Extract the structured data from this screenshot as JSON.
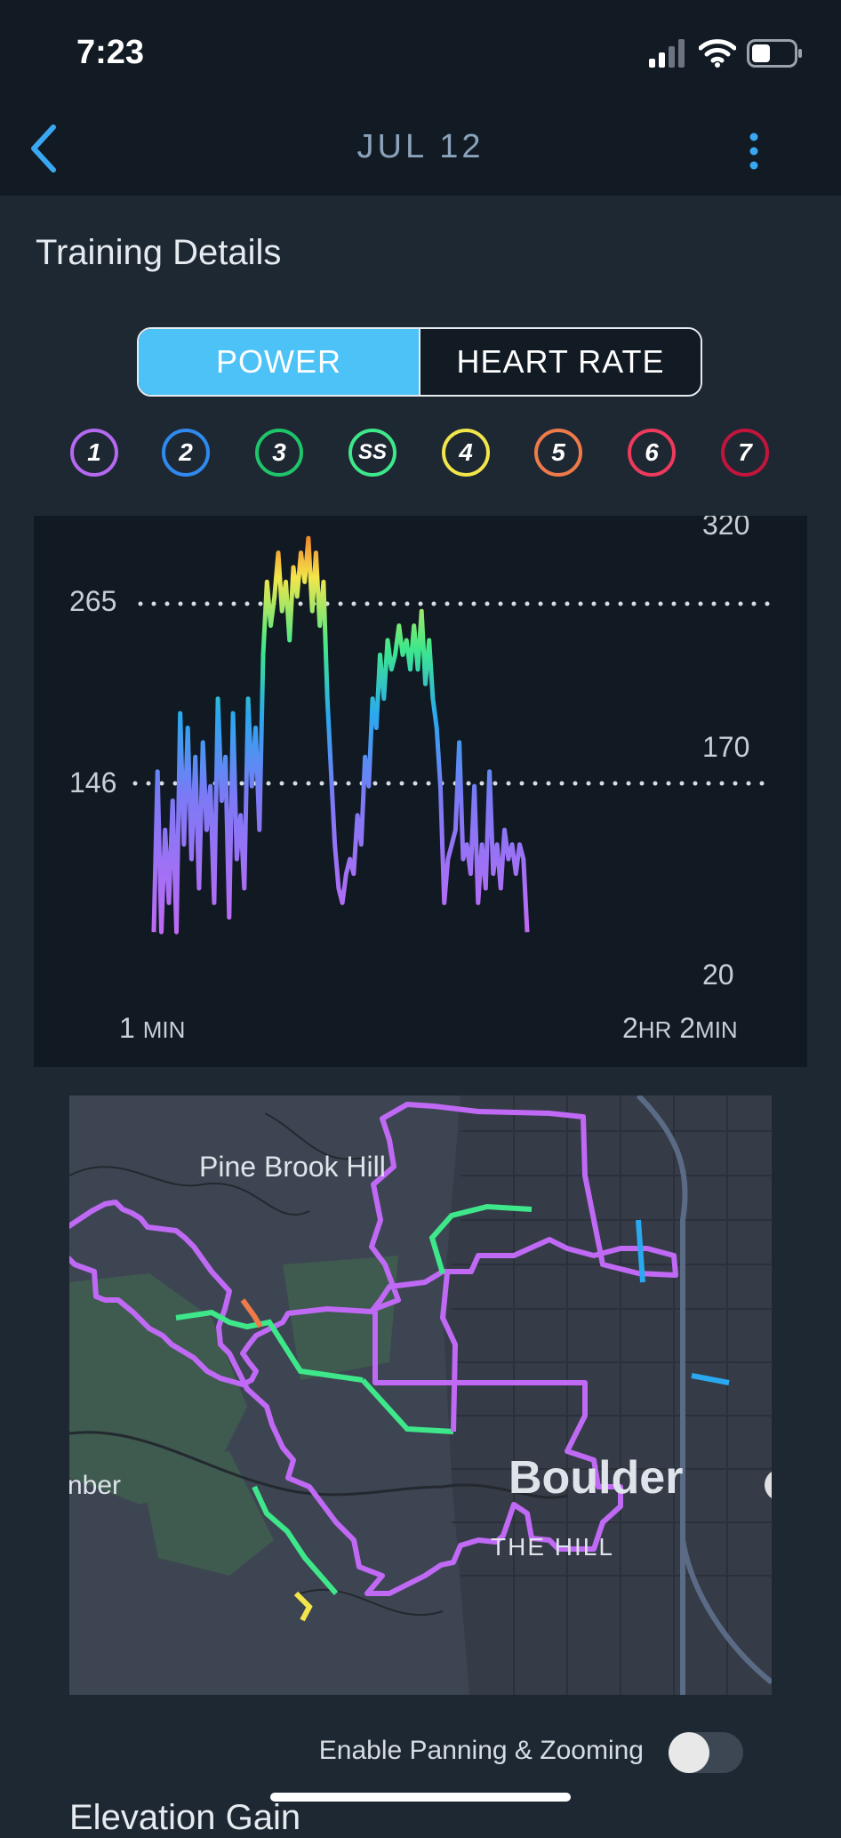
{
  "status_bar": {
    "time": "7:23"
  },
  "nav": {
    "title": "JUL 12"
  },
  "section_title": "Training Details",
  "segmented": {
    "power_label": "POWER",
    "heart_rate_label": "HEART RATE"
  },
  "zones": [
    {
      "label": "1",
      "color": "#b469f0"
    },
    {
      "label": "2",
      "color": "#2f8af0"
    },
    {
      "label": "3",
      "color": "#1ec46a"
    },
    {
      "label": "SS",
      "color": "#3ee88a"
    },
    {
      "label": "4",
      "color": "#f2e64a"
    },
    {
      "label": "5",
      "color": "#ef7a4a"
    },
    {
      "label": "6",
      "color": "#ee3a5c"
    },
    {
      "label": "7",
      "color": "#c2153c"
    }
  ],
  "chart": {
    "ref_left_top": "265",
    "ref_left_mid": "146",
    "right_top": "320",
    "right_mid": "170",
    "right_bottom": "20",
    "x_start_num": "1",
    "x_start_unit": "MIN",
    "x_end_num1": "2",
    "x_end_unit1": "HR",
    "x_end_num2": "2",
    "x_end_unit2": "MIN"
  },
  "chart_data": {
    "type": "area",
    "xlabel": "",
    "ylabel": "",
    "x_range": [
      "1 MIN",
      "2HR 2MIN"
    ],
    "ylim": [
      20,
      320
    ],
    "reference_lines": [
      146,
      265
    ],
    "series": [
      {
        "values": [
          40,
          150,
          40,
          110,
          60,
          130,
          40,
          190,
          100,
          180,
          90,
          160,
          70,
          170,
          110,
          140,
          60,
          200,
          130,
          160,
          50,
          190,
          90,
          120,
          70,
          200,
          140,
          180,
          110,
          230,
          280,
          250,
          270,
          300,
          260,
          280,
          240,
          290,
          270,
          300,
          280,
          310,
          260,
          300,
          250,
          280,
          200,
          150,
          100,
          70,
          60,
          80,
          90,
          80,
          120,
          100,
          160,
          140,
          200,
          180,
          230,
          200,
          240,
          220,
          230,
          250,
          230,
          240,
          220,
          250,
          220,
          260,
          210,
          240,
          200,
          180,
          140,
          60,
          90,
          100,
          110,
          170,
          90,
          100,
          80,
          140,
          60,
          100,
          70,
          150,
          80,
          100,
          70,
          110,
          90,
          100,
          80,
          100,
          90,
          40
        ]
      }
    ]
  },
  "map": {
    "labels": {
      "pine_brook": "Pine Brook Hill",
      "boulder": "Boulder",
      "the_hill": "THE HILL",
      "edge": "nber"
    }
  },
  "toggle": {
    "label": "Enable Panning & Zooming"
  },
  "next_section": {
    "title": "Elevation Gain"
  }
}
